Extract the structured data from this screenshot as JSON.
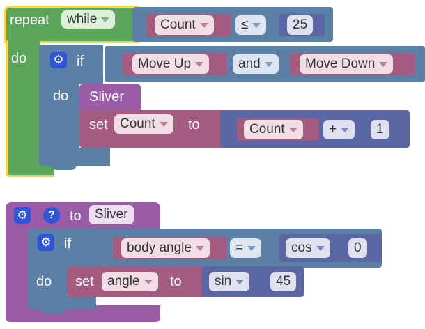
{
  "block1": {
    "repeat_label": "repeat",
    "mode_value": "while",
    "do_label": "do",
    "condition": {
      "left_value": "Count",
      "operator": "≤",
      "right_value": "25"
    },
    "if_block": {
      "if_label": "if",
      "do_label": "do",
      "condition": {
        "left_value": "Move Up",
        "operator": "and",
        "right_value": "Move Down"
      },
      "call_label": "Sliver",
      "set_block": {
        "set_label": "set",
        "variable": "Count",
        "to_label": "to",
        "expression": {
          "left_value": "Count",
          "operator": "+",
          "right_value": "1"
        }
      }
    }
  },
  "block2": {
    "help_symbol": "?",
    "to_label": "to",
    "function_name": "Sliver",
    "if_block": {
      "if_label": "if",
      "do_label": "do",
      "condition": {
        "left_value": "body angle",
        "operator": "=",
        "function": "cos",
        "argument": "0"
      },
      "set_block": {
        "set_label": "set",
        "variable": "angle",
        "to_label": "to",
        "function": "sin",
        "argument": "45"
      }
    }
  },
  "colors": {
    "loop": "#5ba55b",
    "logic": "#5b80a5",
    "variable": "#a55b80",
    "procedure": "#9a5ca6",
    "math": "#5b67a5",
    "selection": "#fbd53d",
    "mutator_icon": "#2f56d9"
  },
  "icons": {
    "mutator": "gear-icon",
    "help": "help-icon",
    "dropdown": "chevron-down-icon"
  }
}
